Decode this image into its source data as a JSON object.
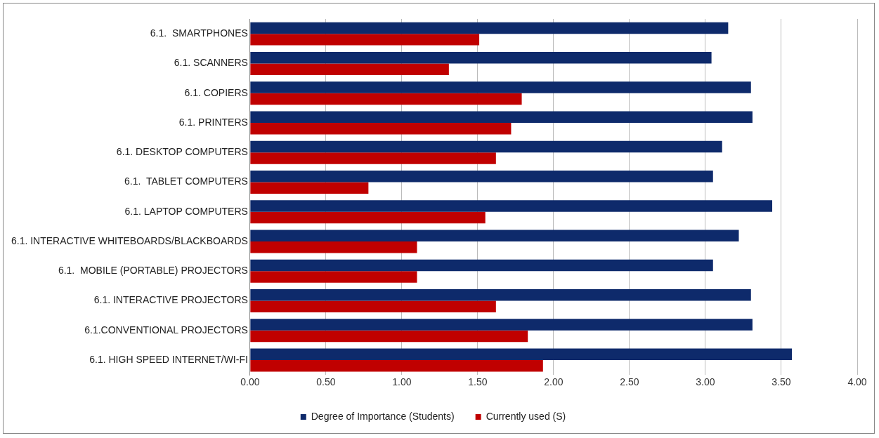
{
  "chart_data": {
    "type": "bar",
    "orientation": "horizontal",
    "categories": [
      "6.1.  SMARTPHONES",
      "6.1. SCANNERS",
      "6.1. COPIERS",
      "6.1. PRINTERS",
      "6.1. DESKTOP COMPUTERS",
      "6.1.  TABLET COMPUTERS",
      "6.1. LAPTOP COMPUTERS",
      "6.1. INTERACTIVE WHITEBOARDS/BLACKBOARDS",
      "6.1.  MOBILE (PORTABLE) PROJECTORS",
      "6.1. INTERACTIVE PROJECTORS",
      "6.1.CONVENTIONAL PROJECTORS",
      "6.1. HIGH SPEED INTERNET/WI-FI"
    ],
    "series": [
      {
        "name": "Degree of Importance (Students)",
        "color": "#0e2a6b",
        "values": [
          3.15,
          3.04,
          3.3,
          3.31,
          3.11,
          3.05,
          3.44,
          3.22,
          3.05,
          3.3,
          3.31,
          3.57
        ]
      },
      {
        "name": "Currently used (S)",
        "color": "#c00000",
        "values": [
          1.51,
          1.31,
          1.79,
          1.72,
          1.62,
          0.78,
          1.55,
          1.1,
          1.1,
          1.62,
          1.83,
          1.93
        ]
      }
    ],
    "xlim": [
      0,
      4
    ],
    "xticks": [
      {
        "value": 0,
        "label": "0.00"
      },
      {
        "value": 0.5,
        "label": "0.50"
      },
      {
        "value": 1,
        "label": "1.00"
      },
      {
        "value": 1.5,
        "label": "1.50"
      },
      {
        "value": 2,
        "label": "2.00"
      },
      {
        "value": 2.5,
        "label": "2.50"
      },
      {
        "value": 3,
        "label": "3.00"
      },
      {
        "value": 3.5,
        "label": "3.50"
      },
      {
        "value": 4,
        "label": "4.00"
      }
    ],
    "grid": "x",
    "legend": "bottom"
  }
}
